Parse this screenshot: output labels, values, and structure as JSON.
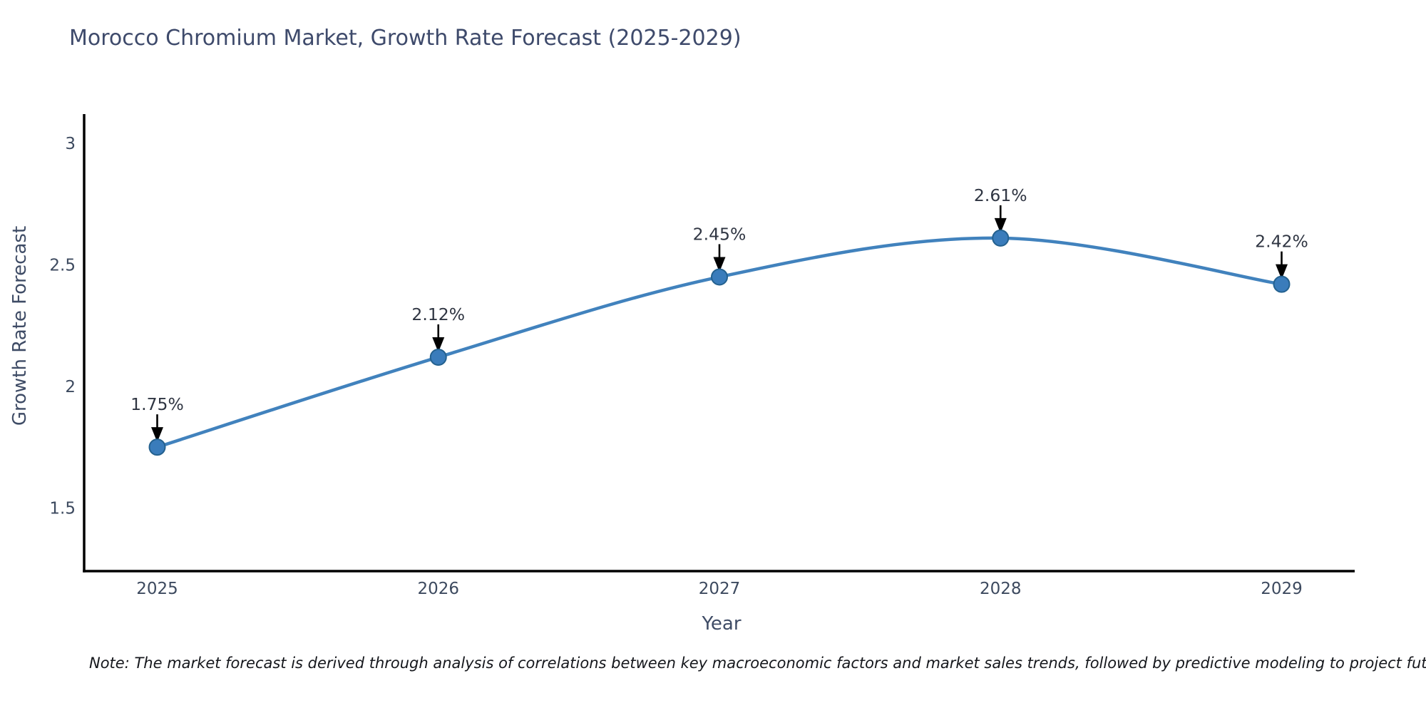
{
  "chart_data": {
    "type": "line",
    "title": "Morocco Chromium Market, Growth Rate Forecast (2025-2029)",
    "xlabel": "Year",
    "ylabel": "Growth Rate Forecast",
    "x": [
      2025,
      2026,
      2027,
      2028,
      2029
    ],
    "series": [
      {
        "name": "Growth Rate Forecast",
        "values": [
          1.75,
          2.12,
          2.45,
          2.61,
          2.42
        ]
      }
    ],
    "point_labels": [
      "1.75%",
      "2.12%",
      "2.45%",
      "2.61%",
      "2.42%"
    ],
    "xtick_labels": [
      "2025",
      "2026",
      "2027",
      "2028",
      "2029"
    ],
    "yticks": [
      1.5,
      2,
      2.5,
      3
    ],
    "ytick_labels": [
      "1.5",
      "2",
      "2.5",
      "3"
    ],
    "xlim": [
      2024.74,
      2029.26
    ],
    "ylim": [
      1.24,
      3.12
    ],
    "grid": false,
    "legend": "none",
    "marker_style": "circle",
    "annotation_arrows": true,
    "colors": {
      "line": "#4182bd",
      "marker_fill": "#3a7cbb",
      "marker_edge": "#24618f",
      "axis_line": "#000000",
      "tick_text": "#3d4a5f",
      "annotation_text": "#2f3542",
      "arrow": "#000000",
      "title_text": "#3e4a6b"
    }
  },
  "note": {
    "text": "Note: The market forecast is derived through analysis of correlations between key macroeconomic factors and market sales trends, followed by predictive modeling to project future sales"
  }
}
